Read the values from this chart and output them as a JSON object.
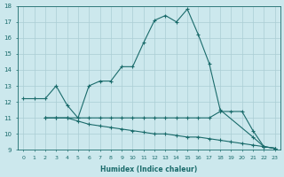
{
  "xlabel": "Humidex (Indice chaleur)",
  "bg_color": "#cce8ed",
  "grid_color": "#aacdd4",
  "line_color": "#1a6b6b",
  "xlim": [
    -0.5,
    23.5
  ],
  "ylim": [
    9,
    18
  ],
  "xticks": [
    0,
    1,
    2,
    3,
    4,
    5,
    6,
    7,
    8,
    9,
    10,
    11,
    12,
    13,
    14,
    15,
    16,
    17,
    18,
    19,
    20,
    21,
    22,
    23
  ],
  "yticks": [
    9,
    10,
    11,
    12,
    13,
    14,
    15,
    16,
    17,
    18
  ],
  "line1_x": [
    0,
    1,
    2,
    3,
    4,
    5,
    6,
    7,
    8,
    9,
    10,
    11,
    12,
    13,
    14,
    15,
    16,
    17,
    18,
    21,
    22,
    23
  ],
  "line1_y": [
    12.2,
    12.2,
    12.2,
    13.0,
    11.8,
    11.0,
    13.0,
    13.3,
    13.3,
    14.2,
    14.2,
    15.7,
    17.1,
    17.4,
    17.0,
    17.8,
    16.2,
    14.4,
    11.5,
    9.8,
    9.2,
    9.1
  ],
  "line2_x": [
    2,
    3,
    4,
    5,
    6,
    7,
    8,
    9,
    10,
    11,
    12,
    13,
    14,
    15,
    16,
    17,
    18,
    19,
    20,
    21,
    22,
    23
  ],
  "line2_y": [
    11.0,
    11.0,
    11.0,
    11.0,
    11.0,
    11.0,
    11.0,
    11.0,
    11.0,
    11.0,
    11.0,
    11.0,
    11.0,
    11.0,
    11.0,
    11.0,
    11.4,
    11.4,
    11.4,
    10.2,
    9.2,
    9.1
  ],
  "line3_x": [
    2,
    3,
    4,
    5,
    6,
    7,
    8,
    9,
    10,
    11,
    12,
    13,
    14,
    15,
    16,
    17,
    18,
    19,
    20,
    21,
    22,
    23
  ],
  "line3_y": [
    11.0,
    11.0,
    11.0,
    10.8,
    10.6,
    10.5,
    10.4,
    10.3,
    10.2,
    10.1,
    10.0,
    10.0,
    9.9,
    9.8,
    9.8,
    9.7,
    9.6,
    9.5,
    9.4,
    9.3,
    9.2,
    9.1
  ]
}
